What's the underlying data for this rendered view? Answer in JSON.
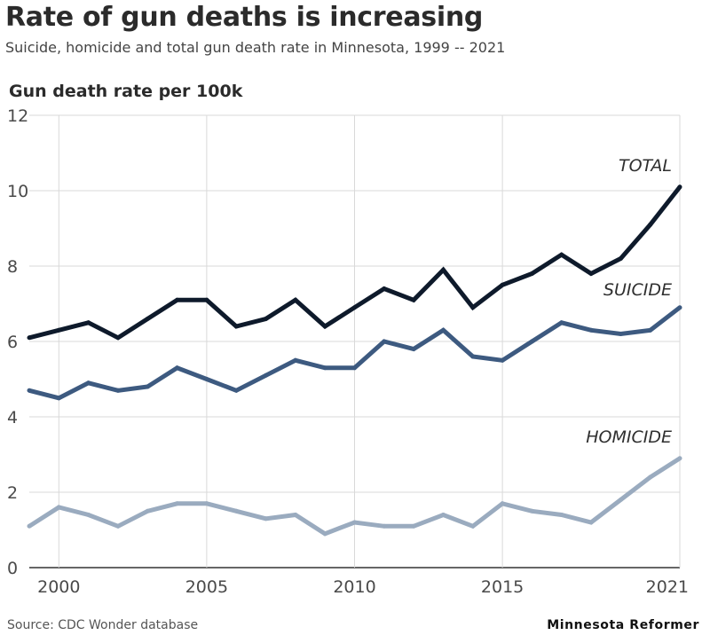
{
  "header": {
    "title": "Rate of gun deaths is increasing",
    "subtitle": "Suicide, homicide and total gun death rate in Minnesota, 1999 -- 2021"
  },
  "footer": {
    "source": "Source: CDC Wonder database",
    "brand": "Minnesota Reformer"
  },
  "chart_data": {
    "type": "line",
    "title": "Rate of gun deaths is increasing",
    "subtitle": "Suicide, homicide and total gun death rate in Minnesota, 1999 -- 2021",
    "ylabel": "Gun death rate per 100k",
    "xlabel": "",
    "ylim": [
      0,
      12
    ],
    "xlim": [
      1999,
      2021
    ],
    "yticks": [
      0,
      2,
      4,
      6,
      8,
      10,
      12
    ],
    "xticks": [
      "2000",
      "2005",
      "2010",
      "2015",
      "2021"
    ],
    "grid": "vertical and horizontal",
    "x": [
      1999,
      2000,
      2001,
      2002,
      2003,
      2004,
      2005,
      2006,
      2007,
      2008,
      2009,
      2010,
      2011,
      2012,
      2013,
      2014,
      2015,
      2016,
      2017,
      2018,
      2019,
      2020,
      2021
    ],
    "series": [
      {
        "name": "TOTAL",
        "color": "#0e1a2b",
        "values": [
          6.1,
          6.3,
          6.5,
          6.1,
          6.6,
          7.1,
          7.1,
          6.4,
          6.6,
          7.1,
          6.4,
          6.9,
          7.4,
          7.1,
          7.9,
          6.9,
          7.5,
          7.8,
          8.3,
          7.8,
          8.2,
          9.1,
          10.1
        ]
      },
      {
        "name": "SUICIDE",
        "color": "#3d5a80",
        "values": [
          4.7,
          4.5,
          4.9,
          4.7,
          4.8,
          5.3,
          5.0,
          4.7,
          5.1,
          5.5,
          5.3,
          5.3,
          6.0,
          5.8,
          6.3,
          5.6,
          5.5,
          6.0,
          6.5,
          6.3,
          6.2,
          6.3,
          6.9
        ]
      },
      {
        "name": "HOMICIDE",
        "color": "#9aabbf",
        "values": [
          1.1,
          1.6,
          1.4,
          1.1,
          1.5,
          1.7,
          1.7,
          1.5,
          1.3,
          1.4,
          0.9,
          1.2,
          1.1,
          1.1,
          1.4,
          1.1,
          1.7,
          1.5,
          1.4,
          1.2,
          1.8,
          2.4,
          2.9
        ]
      }
    ]
  }
}
